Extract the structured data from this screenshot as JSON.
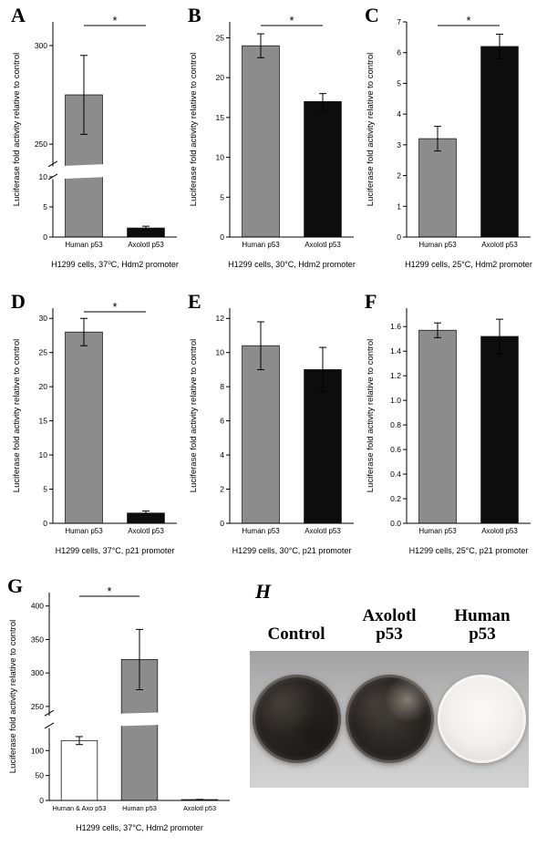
{
  "chart_data": [
    {
      "panel": "A",
      "type": "bar",
      "ylabel": "Luciferase fold activity relative to control",
      "caption": "H1299 cells, 37⁰C, Hdm2 promoter",
      "categories": [
        "Human p53",
        "Axolotl p53"
      ],
      "values": [
        275,
        1.5
      ],
      "errors": [
        20,
        0.3
      ],
      "bar_colors": [
        "#8c8c8c",
        "#0d0d0d"
      ],
      "significance": {
        "label": "*",
        "between": [
          0,
          1
        ]
      },
      "axis_break": true,
      "segments": [
        {
          "min": 0,
          "max": 10,
          "frac": 0.28,
          "ticks": [
            0,
            5,
            10
          ]
        },
        {
          "min": 240,
          "max": 312,
          "ticks": [
            250,
            300
          ]
        }
      ]
    },
    {
      "panel": "B",
      "type": "bar",
      "ylabel": "Luciferase fold activity relative to control",
      "caption": "H1299 cells, 30°C, Hdm2 promoter",
      "categories": [
        "Human p53",
        "Axolotl p53"
      ],
      "values": [
        24,
        17
      ],
      "errors": [
        1.5,
        1
      ],
      "bar_colors": [
        "#8c8c8c",
        "#0d0d0d"
      ],
      "significance": {
        "label": "*",
        "between": [
          0,
          1
        ]
      },
      "ylim": [
        0,
        27
      ],
      "ticks": [
        0,
        5,
        10,
        15,
        20,
        25
      ]
    },
    {
      "panel": "C",
      "type": "bar",
      "ylabel": "Luciferase fold activity relative to control",
      "caption": "H1299 cells, 25°C, Hdm2 promoter",
      "categories": [
        "Human p53",
        "Axolotl p53"
      ],
      "values": [
        3.2,
        6.2
      ],
      "errors": [
        0.4,
        0.4
      ],
      "bar_colors": [
        "#8c8c8c",
        "#0d0d0d"
      ],
      "significance": {
        "label": "*",
        "between": [
          0,
          1
        ]
      },
      "ylim": [
        0,
        7
      ],
      "ticks": [
        0,
        1,
        2,
        3,
        4,
        5,
        6,
        7
      ]
    },
    {
      "panel": "D",
      "type": "bar",
      "ylabel": "Luciferase fold activity relative to control",
      "caption": "H1299 cells, 37°C, p21 promoter",
      "categories": [
        "Human p53",
        "Axolotl p53"
      ],
      "values": [
        28,
        1.5
      ],
      "errors": [
        2,
        0.3
      ],
      "bar_colors": [
        "#8c8c8c",
        "#0d0d0d"
      ],
      "significance": {
        "label": "*",
        "between": [
          0,
          1
        ]
      },
      "ylim": [
        0,
        31.5
      ],
      "ticks": [
        0,
        5,
        10,
        15,
        20,
        25,
        30
      ]
    },
    {
      "panel": "E",
      "type": "bar",
      "ylabel": "Luciferase fold activity relative to control",
      "caption": "H1299 cells, 30°C, p21 promoter",
      "categories": [
        "Human p53",
        "Axolotl p53"
      ],
      "values": [
        10.4,
        9.0
      ],
      "errors": [
        1.4,
        1.3
      ],
      "bar_colors": [
        "#8c8c8c",
        "#0d0d0d"
      ],
      "significance": null,
      "ylim": [
        0,
        12.6
      ],
      "ticks": [
        0,
        2,
        4,
        6,
        8,
        10,
        12
      ]
    },
    {
      "panel": "F",
      "type": "bar",
      "ylabel": "Luciferase fold activity relative to control",
      "caption": "H1299 cells, 25°C, p21 promoter",
      "categories": [
        "Human p53",
        "Axolotl p53"
      ],
      "values": [
        1.57,
        1.52
      ],
      "errors": [
        0.06,
        0.14
      ],
      "bar_colors": [
        "#8c8c8c",
        "#0d0d0d"
      ],
      "significance": null,
      "ylim": [
        0,
        1.75
      ],
      "ticks": [
        0,
        0.2,
        0.4,
        0.6,
        0.8,
        1.0,
        1.2,
        1.4,
        1.6
      ],
      "tick_labels": [
        "0.0",
        "0.2",
        "0.4",
        "0.6",
        "0.8",
        "1.0",
        "1.2",
        "1.4",
        "1.6"
      ]
    },
    {
      "panel": "G",
      "type": "bar",
      "ylabel": "Luciferase fold activity relative to control",
      "caption": "H1299 cells, 37°C, Hdm2 promoter",
      "categories": [
        "Human & Axo p53",
        "Human p53",
        "Axolotl p53"
      ],
      "values": [
        120,
        320,
        1.7
      ],
      "errors": [
        8,
        45,
        0.4
      ],
      "bar_colors": [
        "#ffffff",
        "#8c8c8c",
        "#0d0d0d"
      ],
      "significance": {
        "label": "*",
        "between": [
          0,
          1
        ]
      },
      "axis_break": true,
      "segments": [
        {
          "min": 0,
          "max": 150,
          "frac": 0.36,
          "ticks": [
            0,
            50,
            100
          ]
        },
        {
          "min": 240,
          "max": 420,
          "ticks": [
            250,
            300,
            350,
            400
          ]
        }
      ]
    }
  ],
  "photo_panel": {
    "panel": "H",
    "labels": [
      [
        "Control",
        ""
      ],
      [
        "Axolotl",
        "p53"
      ],
      [
        "Human",
        "p53"
      ]
    ],
    "dishes": [
      {
        "name": "control",
        "appearance": "dark stained colonies"
      },
      {
        "name": "axolotl-p53",
        "appearance": "dark stained colonies with light smudge"
      },
      {
        "name": "human-p53",
        "appearance": "light, few colonies"
      }
    ]
  }
}
